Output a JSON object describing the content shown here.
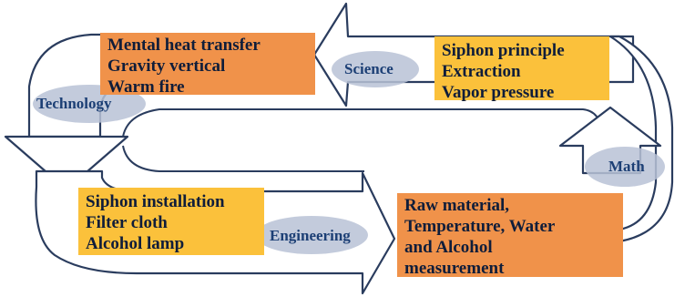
{
  "diagram": {
    "colors": {
      "outline": "#2a3c5e",
      "fill": "#ffffff",
      "cloud": "#b9c2d6",
      "orange_box": "#f0924a",
      "yellow_box": "#fbc13b",
      "label_text": "#1c3f75"
    },
    "labels": {
      "science": "Science",
      "technology": "Technology",
      "engineering": "Engineering",
      "math": "Math"
    },
    "boxes": {
      "technology_box": [
        "Mental heat transfer",
        "Gravity vertical",
        "Warm fire"
      ],
      "science_box": [
        "Siphon principle",
        "Extraction",
        "Vapor pressure"
      ],
      "engineering_box": [
        "Siphon installation",
        "Filter cloth",
        "Alcohol lamp"
      ],
      "math_box": [
        "Raw material,",
        "Temperature, Water",
        "and Alcohol",
        "measurement"
      ]
    }
  }
}
